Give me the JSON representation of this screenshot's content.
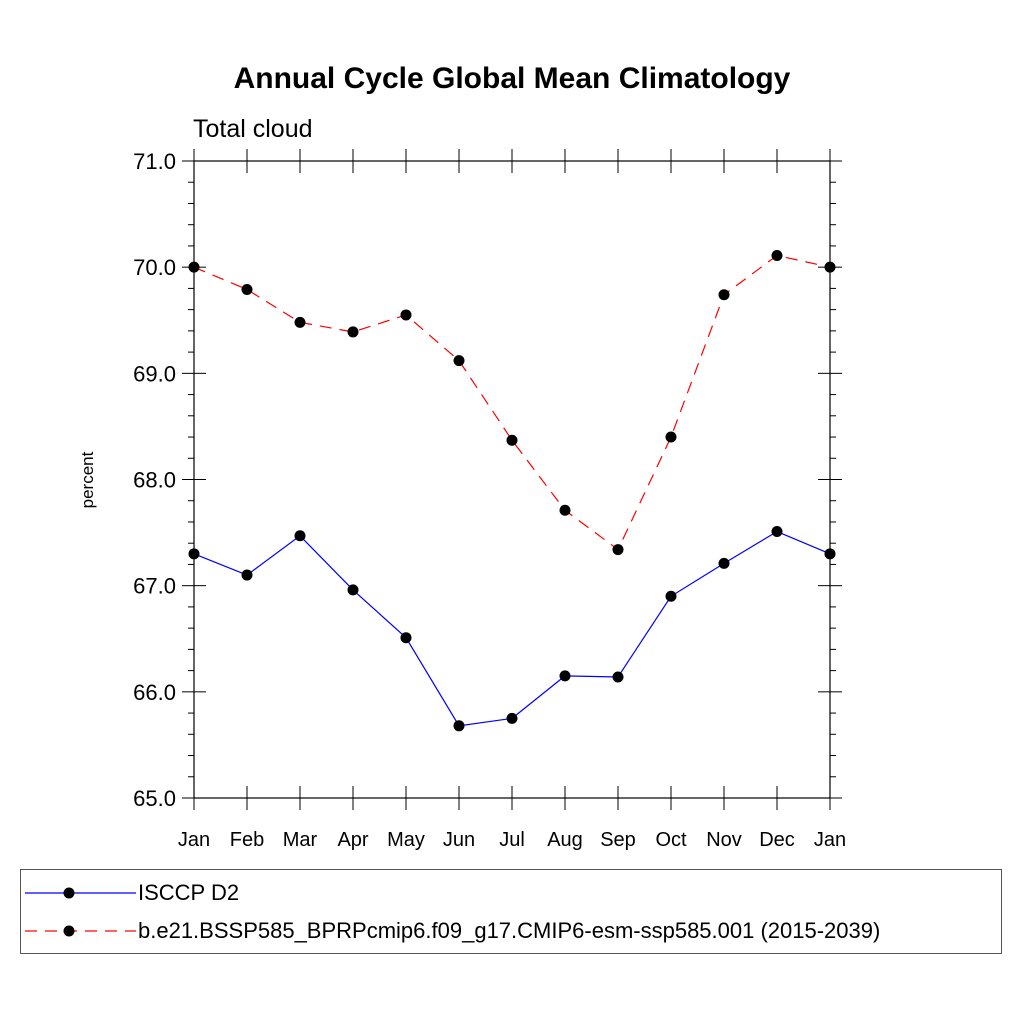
{
  "title": "Annual Cycle Global Mean Climatology",
  "subtitle": "Total cloud",
  "chart_data": {
    "type": "line",
    "title": "Annual Cycle Global Mean Climatology",
    "subtitle": "Total cloud",
    "xlabel": "",
    "ylabel": "percent",
    "categories": [
      "Jan",
      "Feb",
      "Mar",
      "Apr",
      "May",
      "Jun",
      "Jul",
      "Aug",
      "Sep",
      "Oct",
      "Nov",
      "Dec",
      "Jan"
    ],
    "ylim": [
      65.0,
      71.0
    ],
    "yticks": [
      "65.0",
      "66.0",
      "67.0",
      "68.0",
      "69.0",
      "70.0",
      "71.0"
    ],
    "grid": false,
    "legend_position": "bottom",
    "series": [
      {
        "name": "ISCCP D2",
        "color": "#0000ff",
        "line_style": "solid",
        "marker": "filled-circle",
        "values": [
          67.3,
          67.1,
          67.47,
          66.96,
          66.51,
          65.68,
          65.75,
          66.15,
          66.14,
          66.9,
          67.21,
          67.51,
          67.3
        ]
      },
      {
        "name": "b.e21.BSSP585_BPRPcmip6.f09_g17.CMIP6-esm-ssp585.001 (2015-2039)",
        "color": "#ff0000",
        "line_style": "dashed",
        "marker": "filled-circle",
        "values": [
          70.0,
          69.79,
          69.48,
          69.39,
          69.55,
          69.12,
          68.37,
          67.71,
          67.34,
          68.4,
          69.74,
          70.11,
          70.0
        ]
      }
    ]
  }
}
